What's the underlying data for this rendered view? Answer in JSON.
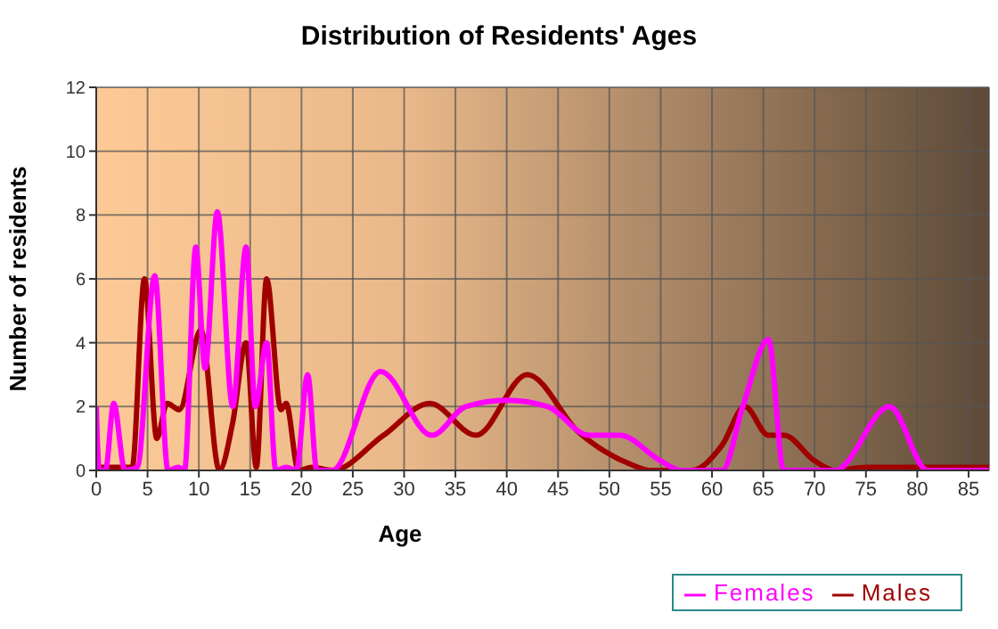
{
  "chart_data": {
    "type": "line",
    "title": "Distribution of Residents' Ages",
    "xlabel": "Age",
    "ylabel": "Number of residents",
    "xlim": [
      0,
      87
    ],
    "xticks": [
      0,
      5,
      10,
      15,
      20,
      25,
      30,
      35,
      40,
      45,
      50,
      55,
      60,
      65,
      70,
      75,
      80,
      85
    ],
    "ylim": [
      0,
      12
    ],
    "yticks": [
      0,
      2,
      4,
      6,
      8,
      10,
      12
    ],
    "grid": true,
    "legend": "bottom right",
    "series": [
      {
        "name": "Males",
        "color": "#a00000",
        "x": [
          0,
          3.5,
          4.7,
          5.9,
          6.9,
          8.1,
          10.2,
          12,
          13.3,
          14.6,
          15.6,
          16.6,
          18,
          18.5,
          19.7,
          21,
          23,
          28,
          32.5,
          37,
          42,
          47,
          52,
          54,
          58,
          61,
          63.2,
          65.5,
          67,
          70,
          72,
          75,
          87
        ],
        "values": [
          0.1,
          0.1,
          6,
          1,
          2.1,
          1.9,
          4.4,
          0,
          1.5,
          4,
          0.1,
          6,
          1.9,
          2.1,
          0,
          0.1,
          0,
          1.1,
          2.1,
          1.1,
          3,
          1.2,
          0.2,
          0,
          0,
          0.8,
          2,
          1.1,
          1.1,
          0.3,
          0,
          0.1,
          0.1
        ]
      },
      {
        "name": "Females",
        "color": "#ff00ff",
        "x": [
          0,
          0.3,
          0.9,
          1.7,
          2.8,
          4,
          5.7,
          7,
          8,
          8.6,
          9.7,
          10.6,
          11.8,
          13.3,
          14.6,
          15.5,
          16.6,
          17.5,
          18.5,
          19.5,
          20.6,
          21.5,
          23,
          27.7,
          32.7,
          36,
          40,
          44,
          48,
          51,
          55,
          57,
          61,
          63,
          65.5,
          67,
          72,
          77.3,
          81,
          87
        ],
        "values": [
          2,
          0,
          0,
          2.1,
          0,
          0.1,
          6.1,
          0,
          0.1,
          0,
          7,
          3.2,
          8.1,
          2,
          7,
          2,
          4,
          0,
          0.1,
          0,
          3,
          0,
          0,
          3.1,
          1.1,
          2,
          2.2,
          2,
          1.1,
          1.1,
          0.3,
          0,
          0,
          2,
          4.1,
          0,
          0,
          2,
          0,
          0
        ]
      }
    ]
  }
}
